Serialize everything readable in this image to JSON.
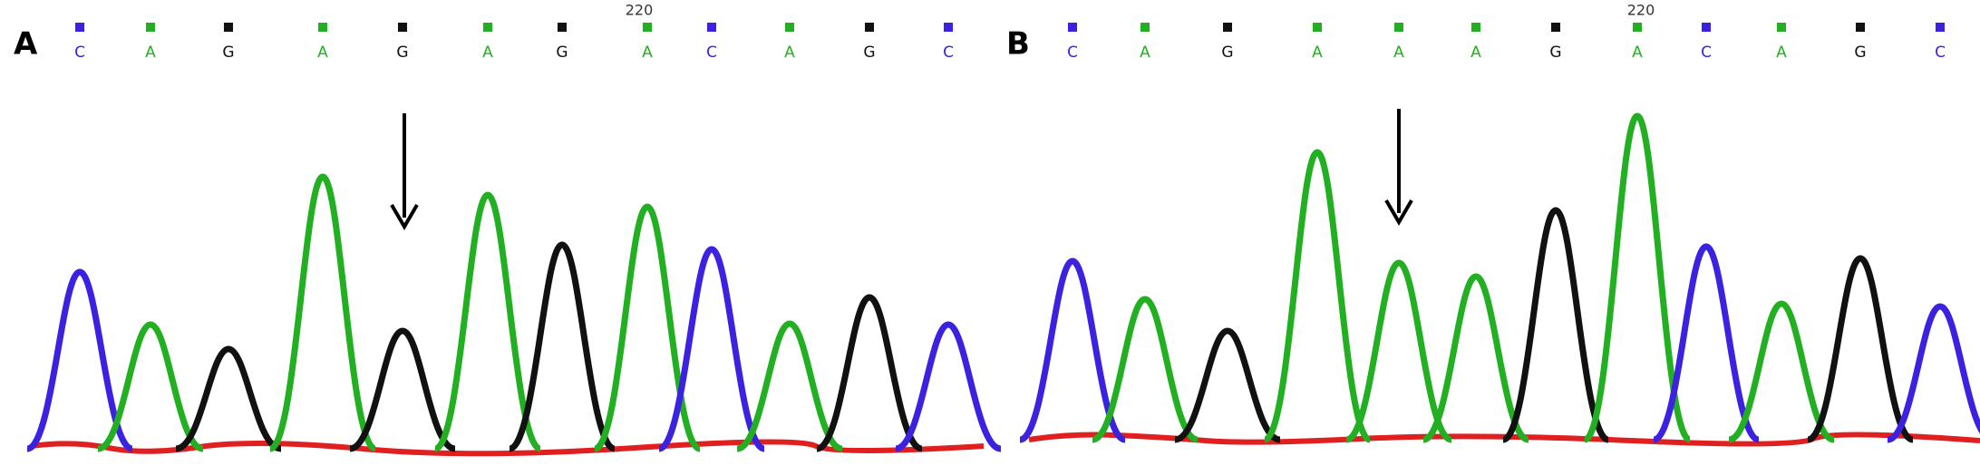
{
  "panels": [
    {
      "label": "A",
      "position_label": "220",
      "bases": [
        "C",
        "A",
        "G",
        "A",
        "G",
        "A",
        "G",
        "A",
        "C",
        "A",
        "G",
        "C"
      ],
      "peak_heights": [
        195,
        137,
        110,
        300,
        130,
        280,
        225,
        267,
        220,
        138,
        167,
        137
      ]
    },
    {
      "label": "B",
      "position_label": "220",
      "bases": [
        "C",
        "A",
        "G",
        "A",
        "A",
        "A",
        "G",
        "A",
        "C",
        "A",
        "G",
        "C"
      ],
      "peak_heights": [
        197,
        155,
        120,
        317,
        195,
        180,
        253,
        357,
        213,
        150,
        200,
        147
      ]
    }
  ],
  "base_colors": {
    "A": "#22b022",
    "C": "#3a22e0",
    "G": "#111111"
  }
}
